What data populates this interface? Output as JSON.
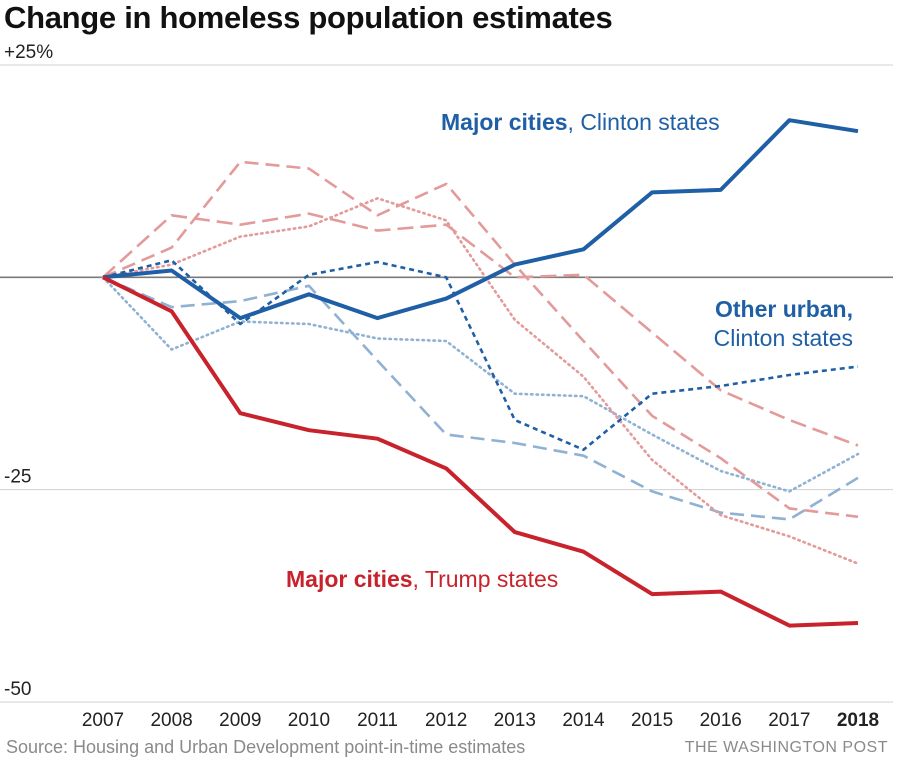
{
  "title": "Change in homeless population estimates",
  "source": "Source: Housing and Urban Development point-in-time estimates",
  "credit": "THE WASHINGTON POST",
  "colors": {
    "clinton_strong": "#1f5fa6",
    "clinton_light": "#8fb1d3",
    "trump_strong": "#c8232c",
    "trump_light": "#e39a9a",
    "baseline": "#7a7a7a",
    "grid": "#d0d0d0"
  },
  "chart_data": {
    "type": "line",
    "x": [
      "2007",
      "2008",
      "2009",
      "2010",
      "2011",
      "2012",
      "2013",
      "2014",
      "2015",
      "2016",
      "2017",
      "2018"
    ],
    "x_highlight": "2018",
    "ylim": [
      -50,
      25
    ],
    "yticks": [
      {
        "value": 25,
        "label": "+25%"
      },
      {
        "value": 0,
        "label": ""
      },
      {
        "value": -25,
        "label": "-25"
      },
      {
        "value": -50,
        "label": "-50"
      }
    ],
    "grid": true,
    "annotations": [
      {
        "bold": "Major cities",
        "rest": ", Clinton states",
        "color_key": "clinton_strong"
      },
      {
        "bold": "Other urban,",
        "rest": "Clinton states",
        "color_key": "clinton_strong"
      },
      {
        "bold": "Major cities",
        "rest": ", Trump states",
        "color_key": "trump_strong"
      }
    ],
    "series": [
      {
        "name": "Major cities, Clinton states",
        "party": "clinton",
        "style": "solid-bold",
        "values": [
          0,
          0.8,
          -4.8,
          -2,
          -4.8,
          -2.5,
          1.5,
          3.3,
          10,
          10.3,
          18.5,
          17.2
        ]
      },
      {
        "name": "Other urban, Clinton states",
        "party": "clinton",
        "style": "dash-bold",
        "values": [
          0,
          2,
          -5.5,
          0.3,
          1.8,
          0,
          -16.8,
          -20.3,
          -13.7,
          -12.8,
          -11.5,
          -10.5
        ]
      },
      {
        "party": "clinton",
        "style": "dash-light",
        "values": [
          0,
          -3.5,
          -2.8,
          -1,
          -9.8,
          -18.5,
          -19.5,
          -21,
          -25.2,
          -27.7,
          -28.5,
          -23.6
        ]
      },
      {
        "party": "clinton",
        "style": "dot-light",
        "values": [
          0,
          -8.5,
          -5.2,
          -5.5,
          -7.2,
          -7.5,
          -13.7,
          -14,
          -18.5,
          -22.8,
          -25.2,
          -20.8
        ]
      },
      {
        "name": "Major cities, Trump states",
        "party": "trump",
        "style": "solid-bold",
        "values": [
          0,
          -4,
          -16,
          -18,
          -19,
          -22.5,
          -30,
          -32.3,
          -37.3,
          -37,
          -41,
          -40.7
        ]
      },
      {
        "party": "trump",
        "style": "longdash-light",
        "values": [
          0,
          7.3,
          6.2,
          7.5,
          5.5,
          6.2,
          0,
          0.3,
          -6.5,
          -13.3,
          -16.8,
          -19.8
        ]
      },
      {
        "party": "trump",
        "style": "dash-light",
        "values": [
          0,
          3.5,
          13.6,
          12.8,
          7.3,
          11,
          1.5,
          -7.5,
          -16.3,
          -21.3,
          -27.2,
          -28.2
        ]
      },
      {
        "party": "trump",
        "style": "dot-light",
        "values": [
          0,
          1.5,
          4.8,
          6,
          9.3,
          6.7,
          -5,
          -11.7,
          -21.5,
          -28,
          -30.5,
          -33.7
        ]
      }
    ]
  }
}
